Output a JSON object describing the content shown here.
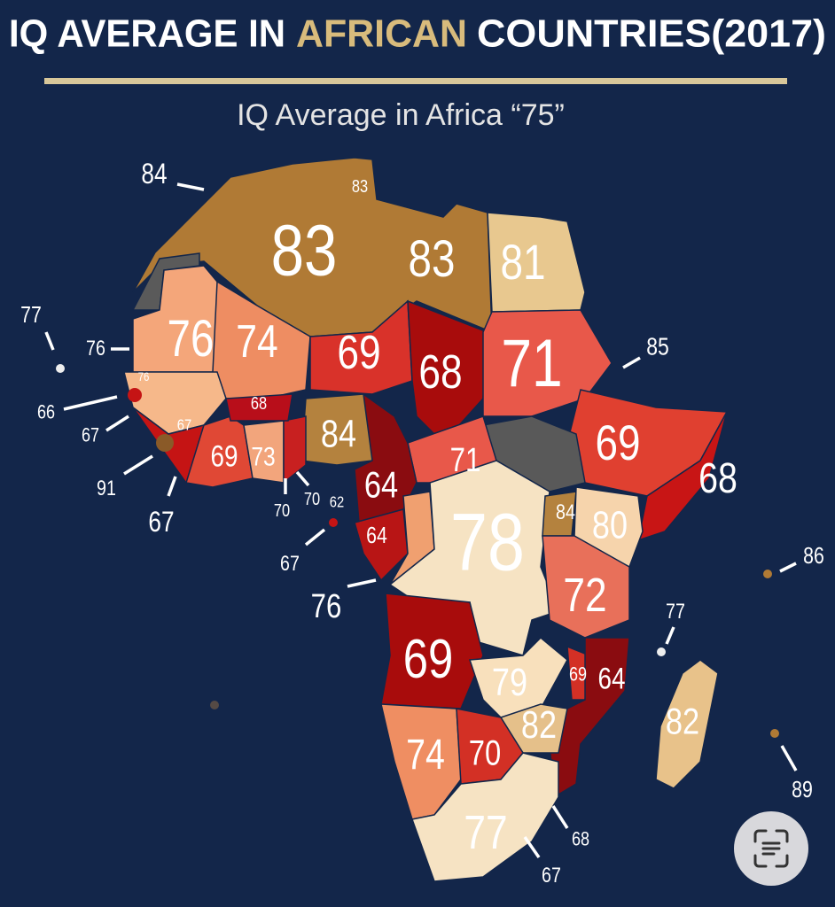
{
  "header": {
    "title": {
      "start": "IQ AVERAGE IN",
      "highlight": "AFRICAN",
      "end": "COUNTRIES(2017)"
    },
    "subtitle": "IQ Average in Africa “75”"
  },
  "map": {
    "labels": [
      84,
      83,
      83,
      83,
      81,
      77,
      76,
      76,
      74,
      69,
      68,
      71,
      85,
      76,
      66,
      68,
      67,
      67,
      84,
      69,
      69,
      73,
      91,
      71,
      68,
      64,
      67,
      70,
      70,
      62,
      84,
      80,
      78,
      64,
      67,
      86,
      76,
      72,
      77,
      69,
      79,
      69,
      64,
      82,
      82,
      74,
      70,
      89,
      77,
      68,
      67
    ]
  }
}
